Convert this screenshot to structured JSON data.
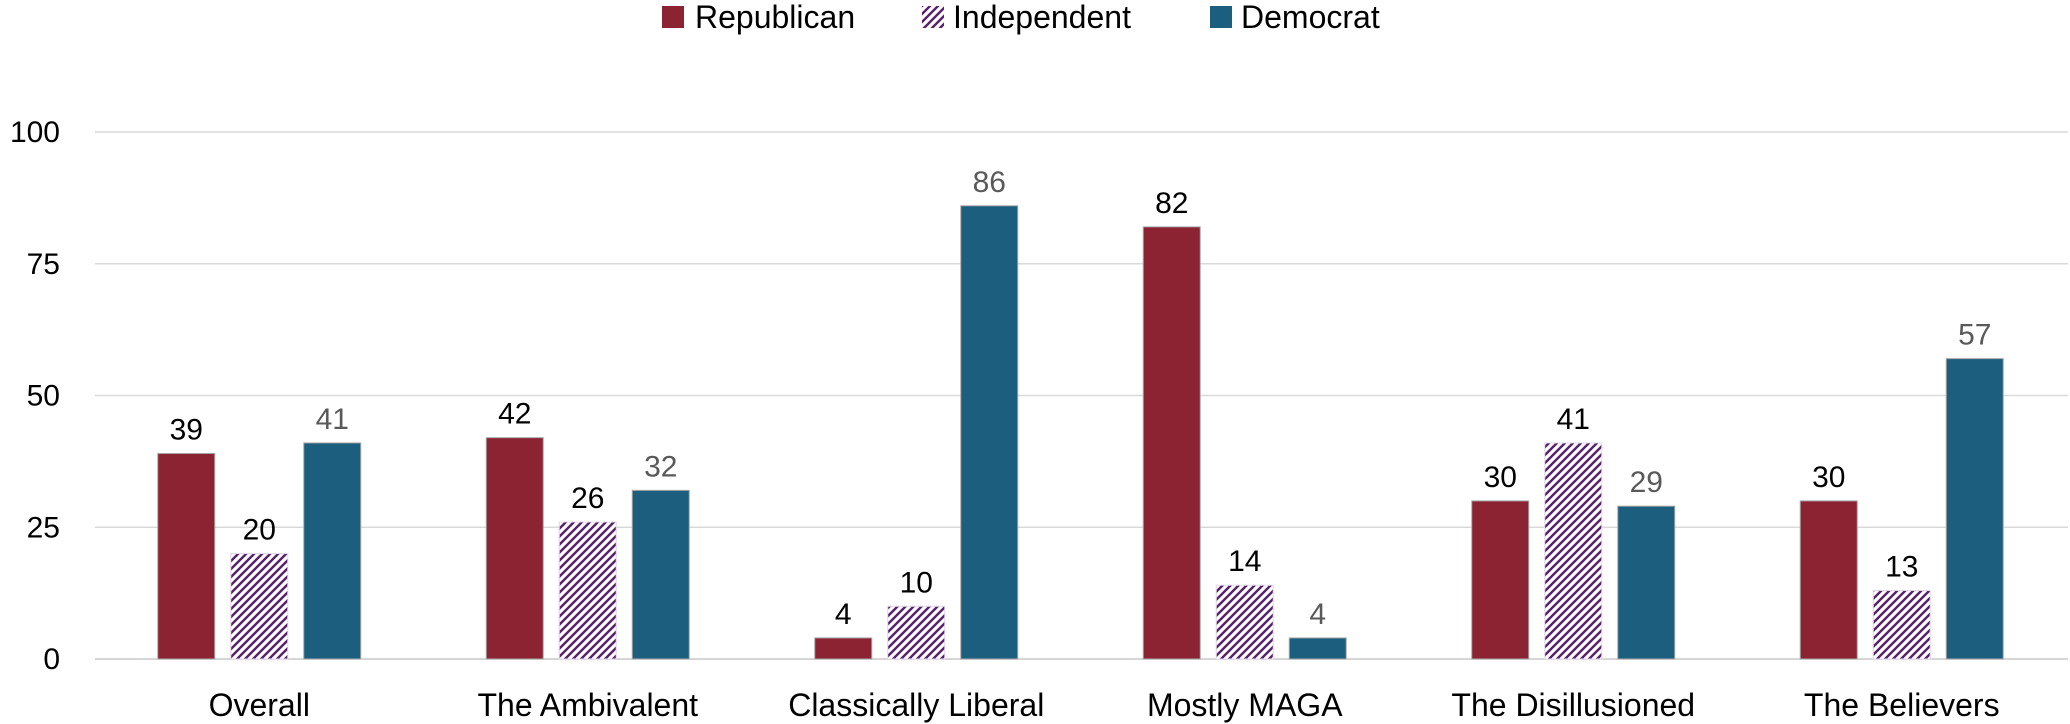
{
  "chart_data": {
    "type": "bar",
    "categories": [
      "Overall",
      "The Ambivalent",
      "Classically Liberal",
      "Mostly MAGA",
      "The Disillusioned",
      "The Believers"
    ],
    "series": [
      {
        "name": "Republican",
        "values": [
          39,
          42,
          4,
          82,
          30,
          30
        ],
        "color": "#8B2332",
        "pattern": "solid",
        "label_color": "#000000"
      },
      {
        "name": "Independent",
        "values": [
          20,
          26,
          10,
          14,
          41,
          13
        ],
        "color": "#5A1F6B",
        "pattern": "diagonal-hatch",
        "label_color": "#000000"
      },
      {
        "name": "Democrat",
        "values": [
          41,
          32,
          86,
          4,
          29,
          57
        ],
        "color": "#1B5E7E",
        "pattern": "solid",
        "label_color": "#595959"
      }
    ],
    "ylim": [
      0,
      100
    ],
    "yticks": [
      0,
      25,
      50,
      75,
      100
    ],
    "grid": true,
    "legend_position": "top-center",
    "title": "",
    "xlabel": "",
    "ylabel": ""
  }
}
